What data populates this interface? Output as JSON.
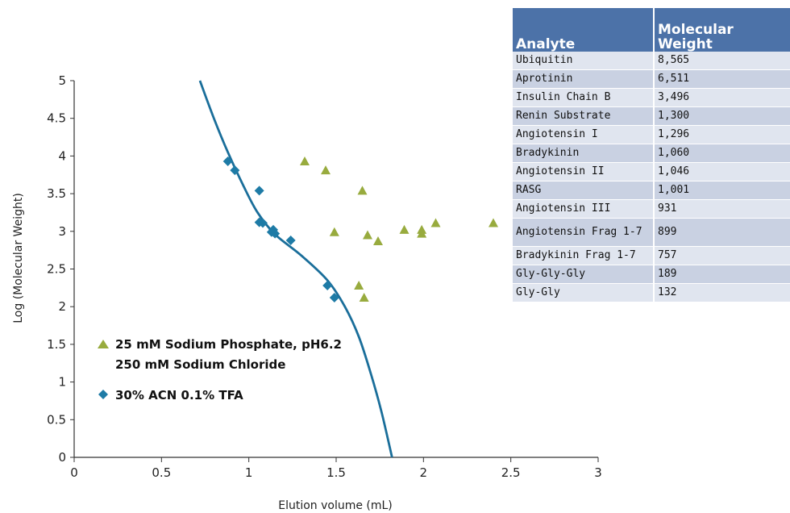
{
  "chart_data": {
    "type": "scatter",
    "title": "",
    "xlabel": "Elution volume (mL)",
    "ylabel": "Log (Molecular Weight)",
    "xlim": [
      0,
      3
    ],
    "ylim": [
      0,
      5
    ],
    "x_ticks": [
      "0",
      "0.5",
      "1",
      "1.5",
      "2",
      "2.5",
      "3"
    ],
    "y_ticks": [
      "0",
      "0.5",
      "1",
      "1.5",
      "2",
      "2.5",
      "3",
      "3.5",
      "4",
      "4.5",
      "5"
    ],
    "grid": false,
    "legend_position": "lower-left",
    "series": [
      {
        "name": "25 mM Sodium Phosphate, pH6.2\n250 mM Sodium Chloride",
        "legend_lines": [
          "25 mM Sodium Phosphate, pH6.2",
          "250 mM Sodium Chloride"
        ],
        "marker": "triangle",
        "color": "#98ab3e",
        "points": [
          [
            1.32,
            3.93
          ],
          [
            1.44,
            3.81
          ],
          [
            1.65,
            3.54
          ],
          [
            1.49,
            2.99
          ],
          [
            1.68,
            2.95
          ],
          [
            1.74,
            2.87
          ],
          [
            1.89,
            3.02
          ],
          [
            1.99,
            3.02
          ],
          [
            1.99,
            2.97
          ],
          [
            2.07,
            3.11
          ],
          [
            2.4,
            3.11
          ],
          [
            1.63,
            2.28
          ],
          [
            1.66,
            2.12
          ]
        ]
      },
      {
        "name": "30% ACN 0.1% TFA",
        "legend_lines": [
          "30% ACN 0.1% TFA"
        ],
        "marker": "diamond",
        "color": "#1e7ba6",
        "points": [
          [
            0.88,
            3.93
          ],
          [
            0.92,
            3.81
          ],
          [
            1.06,
            3.54
          ],
          [
            1.06,
            3.12
          ],
          [
            1.08,
            3.11
          ],
          [
            1.14,
            3.02
          ],
          [
            1.13,
            2.99
          ],
          [
            1.15,
            2.97
          ],
          [
            1.24,
            2.88
          ],
          [
            1.45,
            2.28
          ],
          [
            1.49,
            2.12
          ]
        ]
      }
    ],
    "fit_curve": {
      "series": "30% ACN 0.1% TFA",
      "color": "#1a6e9a",
      "points": [
        [
          0.72,
          5.0
        ],
        [
          0.8,
          4.5
        ],
        [
          0.88,
          4.05
        ],
        [
          0.97,
          3.6
        ],
        [
          1.05,
          3.25
        ],
        [
          1.15,
          2.96
        ],
        [
          1.3,
          2.68
        ],
        [
          1.45,
          2.35
        ],
        [
          1.55,
          2.0
        ],
        [
          1.63,
          1.6
        ],
        [
          1.7,
          1.1
        ],
        [
          1.76,
          0.6
        ],
        [
          1.82,
          0.0
        ]
      ]
    }
  },
  "table": {
    "headers": [
      "Analyte",
      "Molecular\nWeight"
    ],
    "rows": [
      [
        "Ubiquitin",
        "8,565"
      ],
      [
        "Aprotinin",
        "6,511"
      ],
      [
        "Insulin Chain B",
        "3,496"
      ],
      [
        "Renin Substrate",
        "1,300"
      ],
      [
        "Angiotensin I",
        "1,296"
      ],
      [
        "Bradykinin",
        "1,060"
      ],
      [
        "Angiotensin II",
        "1,046"
      ],
      [
        "RASG",
        "1,001"
      ],
      [
        "Angiotensin III",
        "931"
      ],
      [
        "Angiotensin Frag 1-7",
        "899"
      ],
      [
        "Bradykinin Frag 1-7",
        "757"
      ],
      [
        "Gly-Gly-Gly",
        "189"
      ],
      [
        "Gly-Gly",
        "132"
      ]
    ]
  }
}
